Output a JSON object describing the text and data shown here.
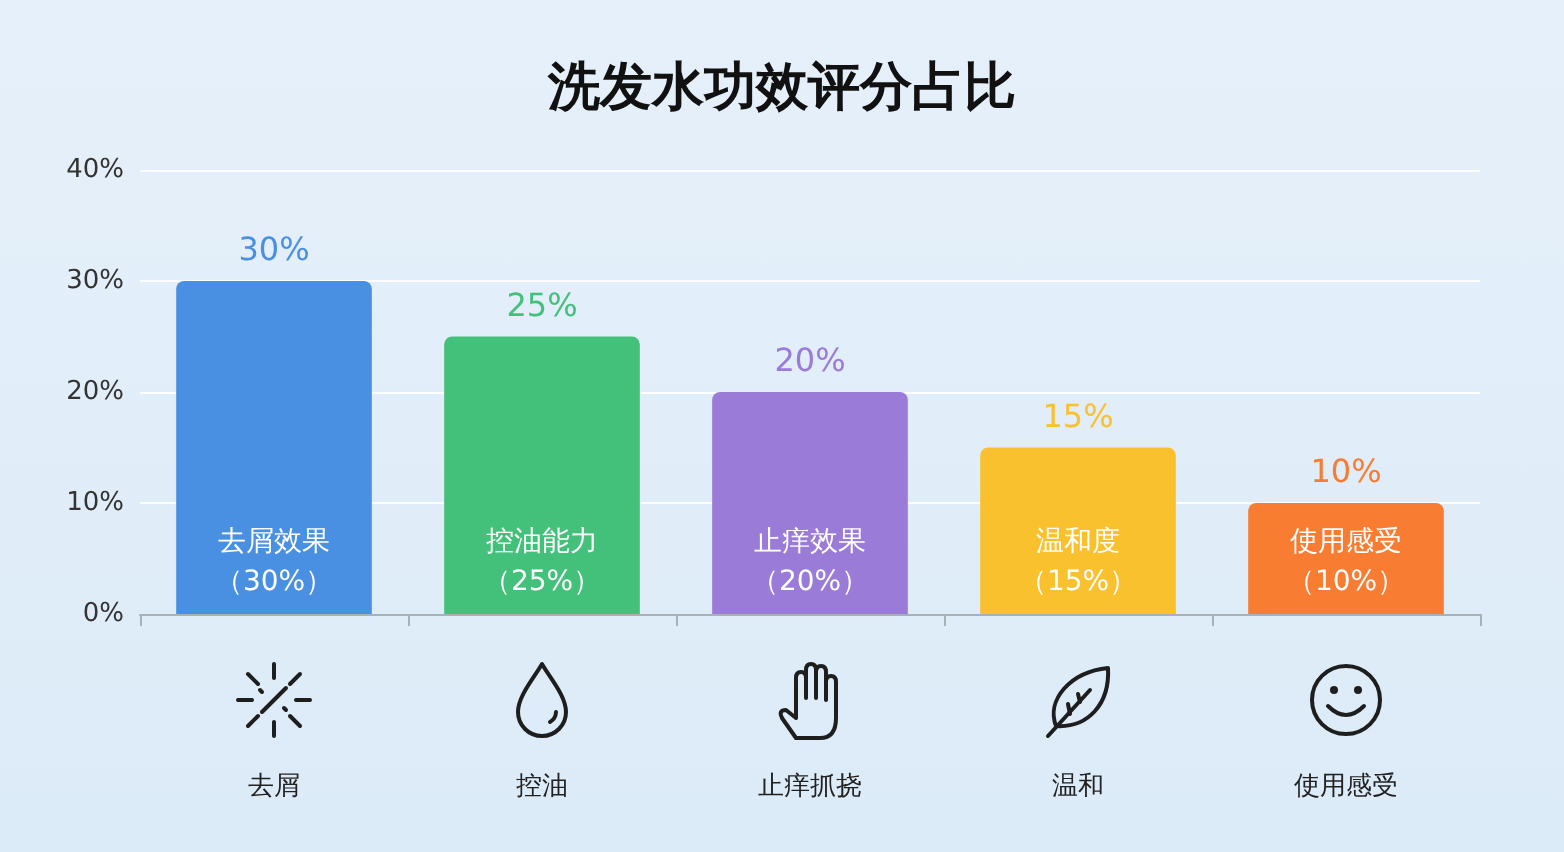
{
  "chart_data": {
    "type": "bar",
    "title": "洗发水功效评分占比",
    "categories": [
      "去屑",
      "控油",
      "止痒抓挠",
      "温和",
      "使用感受"
    ],
    "values": [
      30,
      25,
      20,
      15,
      10
    ],
    "colors": [
      "#4a90e2",
      "#43c17a",
      "#9a7bd8",
      "#f9c12e",
      "#f87d32"
    ],
    "value_labels": [
      "30%",
      "25%",
      "20%",
      "15%",
      "10%"
    ],
    "annotations": [
      "去屑效果（30%）",
      "控油能力（25%）",
      "止痒效果（20%）",
      "温和度（15%）",
      "使用感受（10%）"
    ],
    "ylim": [
      0,
      40
    ],
    "yticks": [
      {
        "value": 0,
        "label": "0%"
      },
      {
        "value": 10,
        "label": "10%"
      },
      {
        "value": 20,
        "label": "20%"
      },
      {
        "value": 30,
        "label": "30%"
      },
      {
        "value": 40,
        "label": "40%"
      }
    ],
    "grid": "y"
  }
}
